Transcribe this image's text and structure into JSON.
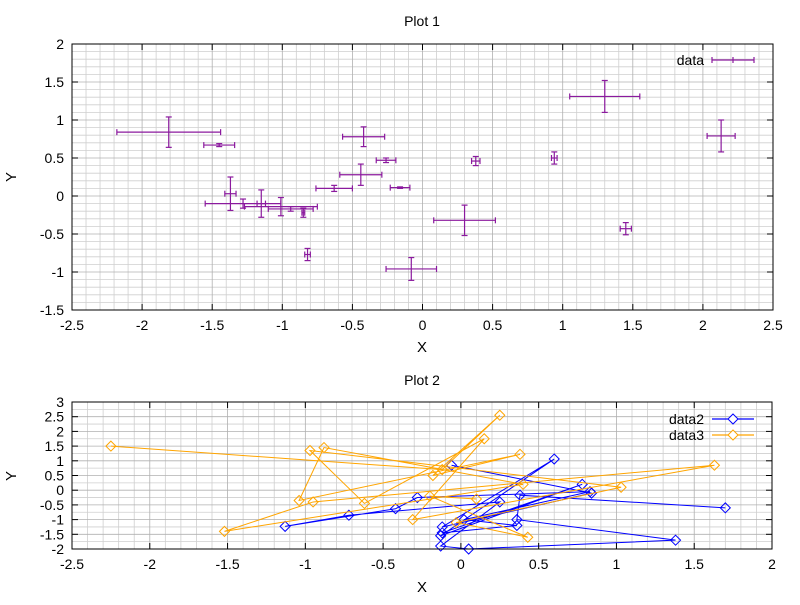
{
  "chart_data": [
    {
      "type": "scatter",
      "title": "Plot 1",
      "xlabel": "X",
      "ylabel": "Y",
      "xlim": [
        -2.5,
        2.5
      ],
      "ylim": [
        -1.5,
        2
      ],
      "xticks": [
        -2.5,
        -2,
        -1.5,
        -1,
        -0.5,
        0,
        0.5,
        1,
        1.5,
        2,
        2.5
      ],
      "yticks": [
        -1.5,
        -1,
        -0.5,
        0,
        0.5,
        1,
        1.5,
        2
      ],
      "xtick_labels": [
        "-2.5",
        "-2",
        "-1.5",
        "-1",
        "-0.5",
        "0",
        "0.5",
        "1",
        "1.5",
        "2",
        "2.5"
      ],
      "ytick_labels": [
        "-1.5",
        "-1",
        "-0.5",
        "0",
        "0.5",
        "1",
        "1.5",
        "2"
      ],
      "grid": true,
      "legend_position": "top-right",
      "series": [
        {
          "name": "data",
          "color": "#8b1a9e",
          "style": "xyerrorbars",
          "points": [
            {
              "x": -1.81,
              "y": 0.84,
              "xerr": 0.37,
              "yerr": 0.2
            },
            {
              "x": -1.45,
              "y": 0.67,
              "xerr": 0.11,
              "yerr": 0.02
            },
            {
              "x": -1.37,
              "y": 0.03,
              "xerr": 0.04,
              "yerr": 0.22
            },
            {
              "x": -1.28,
              "y": -0.1,
              "xerr": 0.27,
              "yerr": 0.06
            },
            {
              "x": -1.15,
              "y": -0.1,
              "xerr": 0.03,
              "yerr": 0.18
            },
            {
              "x": -1.01,
              "y": -0.14,
              "xerr": 0.26,
              "yerr": 0.12
            },
            {
              "x": -0.94,
              "y": -0.17,
              "xerr": 0.16,
              "yerr": 0.03
            },
            {
              "x": -0.85,
              "y": -0.22,
              "xerr": 0.01,
              "yerr": 0.06
            },
            {
              "x": -0.82,
              "y": -0.77,
              "xerr": 0.02,
              "yerr": 0.08
            },
            {
              "x": -0.63,
              "y": 0.1,
              "xerr": 0.13,
              "yerr": 0.04
            },
            {
              "x": -0.44,
              "y": 0.28,
              "xerr": 0.15,
              "yerr": 0.14
            },
            {
              "x": -0.42,
              "y": 0.78,
              "xerr": 0.15,
              "yerr": 0.13
            },
            {
              "x": -0.26,
              "y": 0.47,
              "xerr": 0.07,
              "yerr": 0.03
            },
            {
              "x": -0.16,
              "y": 0.11,
              "xerr": 0.07,
              "yerr": 0.01
            },
            {
              "x": -0.08,
              "y": -0.96,
              "xerr": 0.18,
              "yerr": 0.15
            },
            {
              "x": 0.3,
              "y": -0.32,
              "xerr": 0.22,
              "yerr": 0.2
            },
            {
              "x": 0.38,
              "y": 0.46,
              "xerr": 0.03,
              "yerr": 0.06
            },
            {
              "x": 0.94,
              "y": 0.5,
              "xerr": 0.02,
              "yerr": 0.08
            },
            {
              "x": 1.3,
              "y": 1.31,
              "xerr": 0.25,
              "yerr": 0.21
            },
            {
              "x": 1.45,
              "y": -0.43,
              "xerr": 0.04,
              "yerr": 0.08
            },
            {
              "x": 2.13,
              "y": 0.79,
              "xerr": 0.1,
              "yerr": 0.21
            }
          ]
        }
      ]
    },
    {
      "type": "line",
      "title": "Plot 2",
      "xlabel": "X",
      "ylabel": "Y",
      "xlim": [
        -2.5,
        2
      ],
      "ylim": [
        -2,
        3
      ],
      "xticks": [
        -2.5,
        -2,
        -1.5,
        -1,
        -0.5,
        0,
        0.5,
        1,
        1.5,
        2
      ],
      "yticks": [
        -2,
        -1.5,
        -1,
        -0.5,
        0,
        0.5,
        1,
        1.5,
        2,
        2.5,
        3
      ],
      "xtick_labels": [
        "-2.5",
        "-2",
        "-1.5",
        "-1",
        "-0.5",
        "0",
        "0.5",
        "1",
        "1.5",
        "2"
      ],
      "ytick_labels": [
        "-2",
        "-1.5",
        "-1",
        "-0.5",
        "0",
        "0.5",
        "1",
        "1.5",
        "2",
        "2.5",
        "3"
      ],
      "grid": true,
      "legend_position": "top-right",
      "series": [
        {
          "name": "data2",
          "color": "#0000ff",
          "marker": "diamond",
          "points": [
            {
              "x": -0.06,
              "y": 0.85
            },
            {
              "x": 0.84,
              "y": -0.1
            },
            {
              "x": -0.12,
              "y": -1.25
            },
            {
              "x": 0.6,
              "y": 1.06
            },
            {
              "x": -0.13,
              "y": -1.55
            },
            {
              "x": 0.78,
              "y": 0.2
            },
            {
              "x": -0.12,
              "y": -1.45
            },
            {
              "x": 0.36,
              "y": -1.2
            },
            {
              "x": 0.02,
              "y": -1.0
            },
            {
              "x": 0.83,
              "y": -0.05
            },
            {
              "x": -0.28,
              "y": -0.25
            },
            {
              "x": -0.42,
              "y": -0.63
            },
            {
              "x": -1.13,
              "y": -1.23
            },
            {
              "x": -0.72,
              "y": -0.85
            },
            {
              "x": 0.25,
              "y": -0.4
            },
            {
              "x": -0.13,
              "y": -1.9
            },
            {
              "x": 0.05,
              "y": -2.0
            },
            {
              "x": 1.38,
              "y": -1.7
            },
            {
              "x": 0.36,
              "y": -1.0
            },
            {
              "x": 0.38,
              "y": -0.17
            },
            {
              "x": 1.7,
              "y": -0.6
            }
          ]
        },
        {
          "name": "data3",
          "color": "#ffa500",
          "marker": "diamond",
          "points": [
            {
              "x": -2.25,
              "y": 1.5
            },
            {
              "x": -0.12,
              "y": 0.7
            },
            {
              "x": 0.25,
              "y": 2.55
            },
            {
              "x": -0.18,
              "y": 0.5
            },
            {
              "x": 0.38,
              "y": 1.22
            },
            {
              "x": -1.04,
              "y": -0.35
            },
            {
              "x": -0.88,
              "y": 1.45
            },
            {
              "x": 0.4,
              "y": 0.2
            },
            {
              "x": -1.52,
              "y": -1.4
            },
            {
              "x": -0.95,
              "y": -0.4
            },
            {
              "x": 1.63,
              "y": 0.85
            },
            {
              "x": -0.31,
              "y": -1.0
            },
            {
              "x": 0.15,
              "y": 1.75
            },
            {
              "x": -0.62,
              "y": -0.45
            },
            {
              "x": -0.97,
              "y": 1.35
            },
            {
              "x": 1.03,
              "y": 0.1
            },
            {
              "x": -0.03,
              "y": -1.1
            },
            {
              "x": 0.43,
              "y": -1.6
            },
            {
              "x": -0.2,
              "y": -0.2
            },
            {
              "x": 0.1,
              "y": -0.3
            }
          ]
        }
      ]
    }
  ]
}
